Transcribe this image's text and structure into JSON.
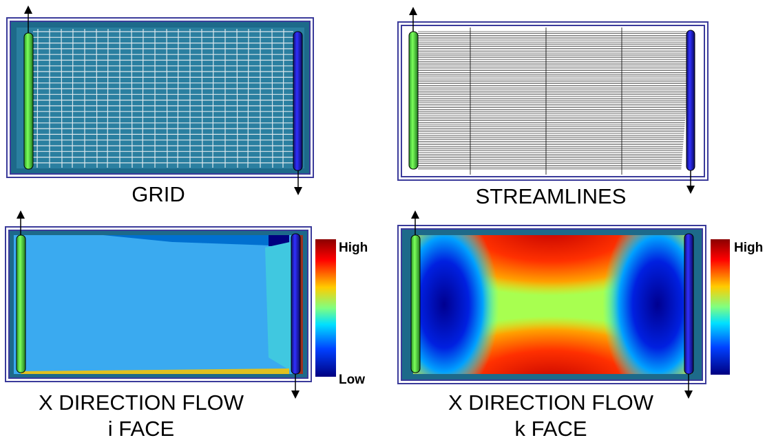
{
  "panels": [
    {
      "caption": [
        "GRID"
      ]
    },
    {
      "caption": [
        "STREAMLINES"
      ]
    },
    {
      "caption": [
        "X DIRECTION FLOW",
        "i FACE"
      ],
      "legend": {
        "high": "High",
        "low": "Low"
      }
    },
    {
      "caption": [
        "X DIRECTION FLOW",
        "k FACE"
      ],
      "legend": {
        "high": "High"
      }
    }
  ]
}
